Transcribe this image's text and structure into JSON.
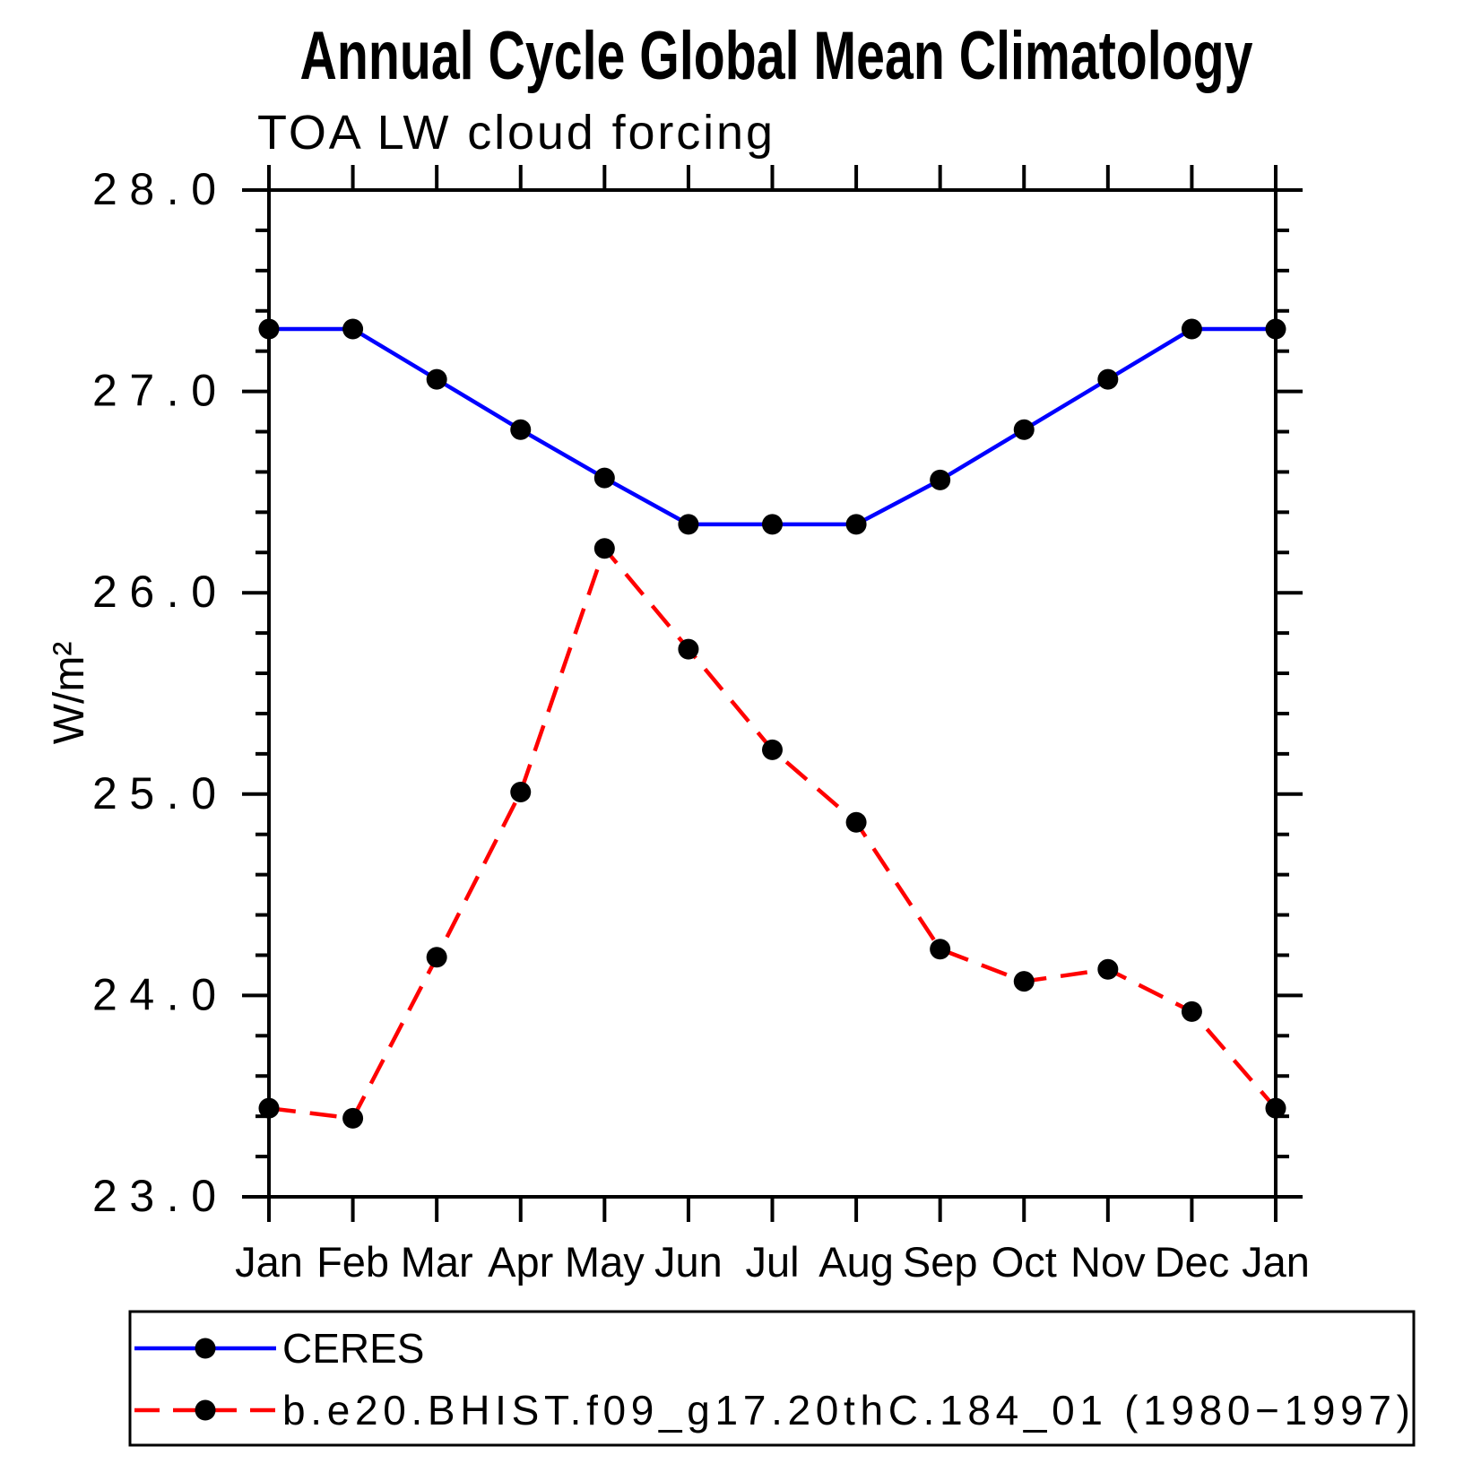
{
  "title": "Annual Cycle Global Mean Climatology",
  "subtitle": "TOA LW cloud forcing",
  "y_axis_label": "W/m²",
  "legend": {
    "entries": [
      {
        "label": "CERES",
        "color": "#0000ff",
        "style": "solid",
        "marker_color": "#000000"
      },
      {
        "label": "b.e20.BHIST.f09_g17.20thC.184_01 (1980−1997)",
        "color": "#ff0000",
        "style": "dashed",
        "marker_color": "#000000"
      }
    ]
  },
  "chart_data": {
    "type": "line",
    "title": "Annual Cycle Global Mean Climatology",
    "subtitle": "TOA LW cloud forcing",
    "xlabel": "",
    "ylabel": "W/m²",
    "categories": [
      "Jan",
      "Feb",
      "Mar",
      "Apr",
      "May",
      "Jun",
      "Jul",
      "Aug",
      "Sep",
      "Oct",
      "Nov",
      "Dec",
      "Jan"
    ],
    "series": [
      {
        "name": "CERES",
        "color": "#0000ff",
        "style": "solid",
        "values": [
          27.31,
          27.31,
          27.06,
          26.81,
          26.57,
          26.34,
          26.34,
          26.34,
          26.56,
          26.81,
          27.06,
          27.31,
          27.31
        ]
      },
      {
        "name": "b.e20.BHIST.f09_g17.20thC.184_01 (1980−1997)",
        "color": "#ff0000",
        "style": "dashed",
        "values": [
          23.44,
          23.39,
          24.19,
          25.01,
          26.22,
          25.72,
          25.22,
          24.86,
          24.23,
          24.07,
          24.13,
          23.92,
          23.44
        ]
      }
    ],
    "marker": "filled-circle",
    "marker_color": "#000000",
    "ylim": [
      23.0,
      28.0
    ],
    "y_major_ticks": [
      "23.0",
      "24.0",
      "25.0",
      "26.0",
      "27.0",
      "28.0"
    ],
    "y_minor_step": 0.2,
    "grid": false,
    "legend_position": "bottom"
  }
}
